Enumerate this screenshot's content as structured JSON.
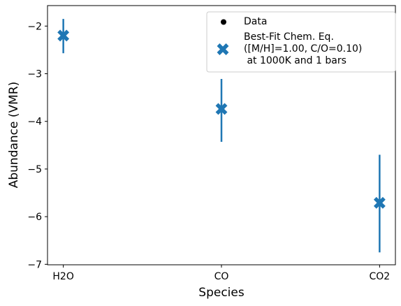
{
  "chart_data": {
    "type": "errorbar",
    "xlabel": "Species",
    "ylabel": "Abundance (VMR)",
    "categories": [
      "H2O",
      "CO",
      "CO2"
    ],
    "ylim": [
      -7.01,
      -1.57
    ],
    "yticks": [
      {
        "value": -2,
        "label": "−2"
      },
      {
        "value": -3,
        "label": "−3"
      },
      {
        "value": -4,
        "label": "−4"
      },
      {
        "value": -5,
        "label": "−5"
      },
      {
        "value": -6,
        "label": "−6"
      },
      {
        "value": -7,
        "label": "−7"
      }
    ],
    "grid": false,
    "legend": "upper right",
    "series": [
      {
        "name": "Data",
        "color": "#000000",
        "errorbar_color": "#1f77b4",
        "values": [
          -2.2,
          -3.74,
          -5.71
        ],
        "yerr_lower": [
          0.37,
          0.69,
          1.04
        ],
        "yerr_upper": [
          0.35,
          0.63,
          1.01
        ]
      },
      {
        "name": "Best-Fit Chem. Eq.\n([M/H]=1.00, C/O=0.10)\n at 1000K and 1 bars",
        "color": "#1f77b4",
        "values": [
          -2.2,
          -3.74,
          -5.71
        ]
      }
    ]
  }
}
